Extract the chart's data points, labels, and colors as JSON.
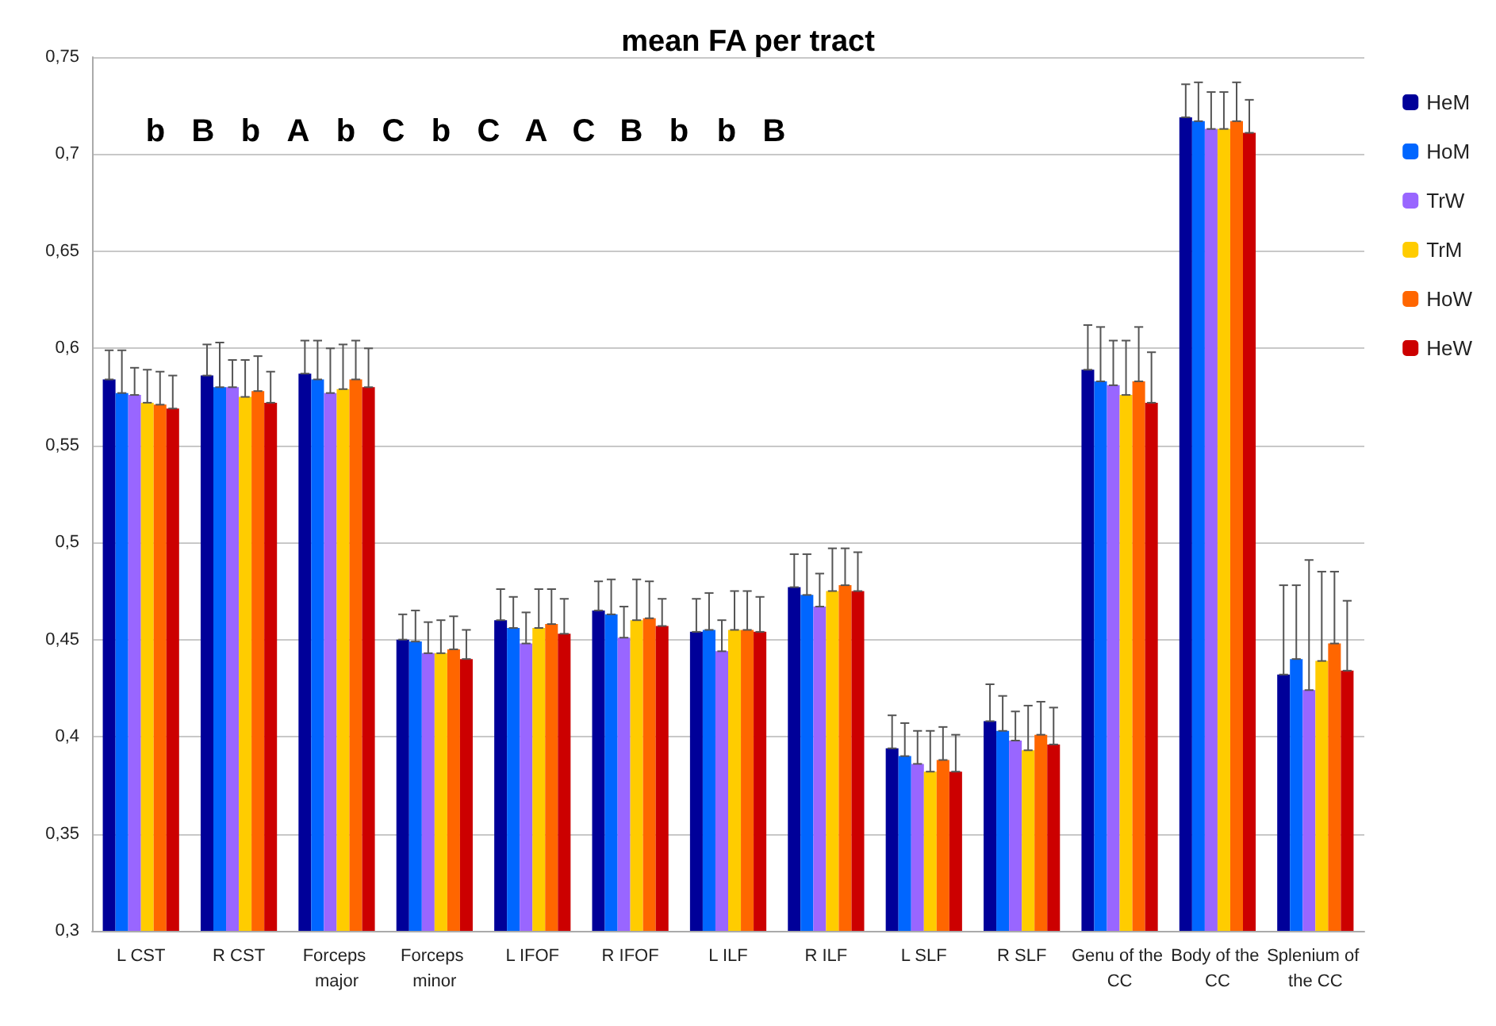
{
  "chart_data": {
    "type": "bar",
    "title": "mean FA per tract",
    "categories": [
      "L CST",
      "R CST",
      "Forceps major",
      "Forceps minor",
      "L IFOF",
      "R IFOF",
      "L ILF",
      "R ILF",
      "L SLF",
      "R SLF",
      "Genu of the CC",
      "Body of the CC",
      "Splenium of the CC"
    ],
    "series": [
      {
        "name": "HeM",
        "color": "#000099",
        "values": [
          0.584,
          0.586,
          0.587,
          0.45,
          0.46,
          0.465,
          0.454,
          0.477,
          0.394,
          0.408,
          0.589,
          0.719,
          0.432
        ],
        "errors": [
          [
            0.584,
            0.599
          ],
          [
            0.586,
            0.602
          ],
          [
            0.587,
            0.604
          ],
          [
            0.45,
            0.463
          ],
          [
            0.46,
            0.476
          ],
          [
            0.465,
            0.48
          ],
          [
            0.454,
            0.471
          ],
          [
            0.477,
            0.494
          ],
          [
            0.394,
            0.411
          ],
          [
            0.408,
            0.427
          ],
          [
            0.589,
            0.612
          ],
          [
            0.719,
            0.736
          ],
          [
            0.432,
            0.478
          ]
        ]
      },
      {
        "name": "HoM",
        "color": "#0066ff",
        "values": [
          0.577,
          0.58,
          0.584,
          0.449,
          0.456,
          0.463,
          0.455,
          0.473,
          0.39,
          0.403,
          0.583,
          0.717,
          0.44
        ],
        "errors": [
          [
            0.577,
            0.599
          ],
          [
            0.58,
            0.603
          ],
          [
            0.584,
            0.604
          ],
          [
            0.449,
            0.465
          ],
          [
            0.456,
            0.472
          ],
          [
            0.463,
            0.481
          ],
          [
            0.455,
            0.474
          ],
          [
            0.473,
            0.494
          ],
          [
            0.39,
            0.407
          ],
          [
            0.403,
            0.421
          ],
          [
            0.583,
            0.611
          ],
          [
            0.717,
            0.737
          ],
          [
            0.44,
            0.478
          ]
        ]
      },
      {
        "name": "TrW",
        "color": "#9966ff",
        "values": [
          0.576,
          0.58,
          0.577,
          0.443,
          0.448,
          0.451,
          0.444,
          0.467,
          0.386,
          0.398,
          0.581,
          0.713,
          0.424
        ],
        "errors": [
          [
            0.576,
            0.59
          ],
          [
            0.58,
            0.594
          ],
          [
            0.577,
            0.6
          ],
          [
            0.443,
            0.459
          ],
          [
            0.448,
            0.464
          ],
          [
            0.451,
            0.467
          ],
          [
            0.444,
            0.46
          ],
          [
            0.467,
            0.484
          ],
          [
            0.386,
            0.403
          ],
          [
            0.398,
            0.413
          ],
          [
            0.581,
            0.604
          ],
          [
            0.713,
            0.732
          ],
          [
            0.424,
            0.491
          ]
        ]
      },
      {
        "name": "TrM",
        "color": "#ffcc00",
        "values": [
          0.572,
          0.575,
          0.579,
          0.443,
          0.456,
          0.46,
          0.455,
          0.475,
          0.382,
          0.393,
          0.576,
          0.713,
          0.439
        ],
        "errors": [
          [
            0.572,
            0.589
          ],
          [
            0.575,
            0.594
          ],
          [
            0.579,
            0.602
          ],
          [
            0.443,
            0.46
          ],
          [
            0.456,
            0.476
          ],
          [
            0.46,
            0.481
          ],
          [
            0.455,
            0.475
          ],
          [
            0.475,
            0.497
          ],
          [
            0.382,
            0.403
          ],
          [
            0.393,
            0.416
          ],
          [
            0.576,
            0.604
          ],
          [
            0.713,
            0.732
          ],
          [
            0.439,
            0.485
          ]
        ]
      },
      {
        "name": "HoW",
        "color": "#ff6600",
        "values": [
          0.571,
          0.578,
          0.584,
          0.445,
          0.458,
          0.461,
          0.455,
          0.478,
          0.388,
          0.401,
          0.583,
          0.717,
          0.448
        ],
        "errors": [
          [
            0.571,
            0.588
          ],
          [
            0.578,
            0.596
          ],
          [
            0.584,
            0.604
          ],
          [
            0.445,
            0.462
          ],
          [
            0.458,
            0.476
          ],
          [
            0.461,
            0.48
          ],
          [
            0.455,
            0.475
          ],
          [
            0.478,
            0.497
          ],
          [
            0.388,
            0.405
          ],
          [
            0.401,
            0.418
          ],
          [
            0.583,
            0.611
          ],
          [
            0.717,
            0.737
          ],
          [
            0.448,
            0.485
          ]
        ]
      },
      {
        "name": "HeW",
        "color": "#cc0000",
        "values": [
          0.569,
          0.572,
          0.58,
          0.44,
          0.453,
          0.457,
          0.454,
          0.475,
          0.382,
          0.396,
          0.572,
          0.711,
          0.434
        ],
        "errors": [
          [
            0.569,
            0.586
          ],
          [
            0.572,
            0.588
          ],
          [
            0.58,
            0.6
          ],
          [
            0.44,
            0.455
          ],
          [
            0.453,
            0.471
          ],
          [
            0.457,
            0.471
          ],
          [
            0.454,
            0.472
          ],
          [
            0.475,
            0.495
          ],
          [
            0.382,
            0.401
          ],
          [
            0.396,
            0.415
          ],
          [
            0.572,
            0.598
          ],
          [
            0.711,
            0.728
          ],
          [
            0.434,
            0.47
          ]
        ]
      }
    ],
    "ylim": [
      0.3,
      0.75
    ],
    "yticks": [
      {
        "value": 0.3,
        "label": "0,3"
      },
      {
        "value": 0.35,
        "label": "0,35"
      },
      {
        "value": 0.4,
        "label": "0,4"
      },
      {
        "value": 0.45,
        "label": "0,45"
      },
      {
        "value": 0.5,
        "label": "0,5"
      },
      {
        "value": 0.55,
        "label": "0,55"
      },
      {
        "value": 0.6,
        "label": "0,6"
      },
      {
        "value": 0.65,
        "label": "0,65"
      },
      {
        "value": 0.7,
        "label": "0,7"
      },
      {
        "value": 0.75,
        "label": "0,75"
      }
    ],
    "grid": "y",
    "legend": "right",
    "annotations": [
      "b",
      "B",
      "b",
      "A",
      "b",
      "C",
      "b",
      "C",
      "A",
      "C",
      "B",
      "b",
      "b",
      "B"
    ]
  }
}
